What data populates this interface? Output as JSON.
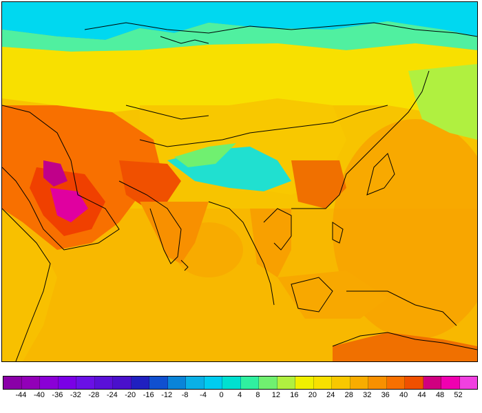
{
  "colorbar": {
    "tick_labels": [
      "-44",
      "-40",
      "-36",
      "-32",
      "-28",
      "-24",
      "-20",
      "-16",
      "-12",
      "-8",
      "-4",
      "0",
      "4",
      "8",
      "12",
      "16",
      "20",
      "24",
      "28",
      "32",
      "36",
      "40",
      "44",
      "48",
      "52"
    ],
    "colors": [
      "#8a00a8",
      "#9200b8",
      "#8a00d6",
      "#7a00e6",
      "#6a10e6",
      "#5a10d8",
      "#4a10cc",
      "#2020c0",
      "#1050d0",
      "#0a84d8",
      "#0ab0e6",
      "#00ccf0",
      "#00e0d0",
      "#30f0a0",
      "#70f070",
      "#b0f040",
      "#f0f000",
      "#f8e000",
      "#f8c800",
      "#f8ac00",
      "#f89000",
      "#f87000",
      "#f05000",
      "#d00080",
      "#f000b0",
      "#f040e0"
    ]
  },
  "map_colors": {
    "ocean": "#f7c400",
    "warm_ocean": "#f8b000",
    "arctic": "#00d8f0",
    "subarctic": "#40f0b0",
    "siberia": "#f8e000",
    "cool_land": "#b0f040",
    "hot_land": "#f88000",
    "very_hot": "#f05000",
    "extreme": "#c0008a",
    "extreme_pink": "#e000a0",
    "tibet": "#20e0d0",
    "coast": "#000000"
  }
}
